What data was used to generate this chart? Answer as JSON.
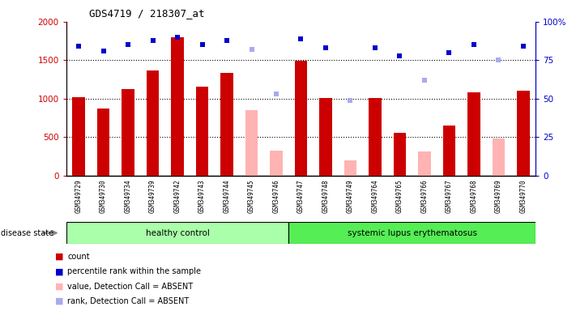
{
  "title": "GDS4719 / 218307_at",
  "samples": [
    "GSM349729",
    "GSM349730",
    "GSM349734",
    "GSM349739",
    "GSM349742",
    "GSM349743",
    "GSM349744",
    "GSM349745",
    "GSM349746",
    "GSM349747",
    "GSM349748",
    "GSM349749",
    "GSM349764",
    "GSM349765",
    "GSM349766",
    "GSM349767",
    "GSM349768",
    "GSM349769",
    "GSM349770"
  ],
  "count_values": [
    1020,
    870,
    1130,
    1370,
    1800,
    1160,
    1340,
    null,
    null,
    1490,
    1010,
    null,
    1010,
    560,
    null,
    650,
    1080,
    null,
    1100
  ],
  "absent_values": [
    null,
    null,
    null,
    null,
    null,
    null,
    null,
    850,
    330,
    null,
    null,
    200,
    null,
    null,
    320,
    null,
    null,
    480,
    null
  ],
  "rank_present": [
    84,
    81,
    85,
    88,
    90,
    85,
    88,
    null,
    null,
    89,
    83,
    null,
    83,
    78,
    null,
    80,
    85,
    null,
    84
  ],
  "rank_absent": [
    null,
    null,
    null,
    null,
    null,
    null,
    null,
    82,
    53,
    null,
    null,
    49,
    null,
    null,
    62,
    null,
    null,
    75,
    null
  ],
  "n_healthy": 9,
  "n_total": 19,
  "healthy_label": "healthy control",
  "sle_label": "systemic lupus erythematosus",
  "disease_state_label": "disease state",
  "ylim_left": [
    0,
    2000
  ],
  "ylim_right": [
    0,
    100
  ],
  "yticks_left": [
    0,
    500,
    1000,
    1500,
    2000
  ],
  "yticks_right": [
    0,
    25,
    50,
    75,
    100
  ],
  "color_count": "#cc0000",
  "color_absent_val": "#ffb3b3",
  "color_rank_present": "#0000cc",
  "color_rank_absent": "#aaaaee",
  "color_healthy_bg": "#aaffaa",
  "color_sle_bg": "#55ee55",
  "color_plot_bg": "#ffffff",
  "color_xaxis_bg": "#cccccc",
  "grid_levels": [
    500,
    1000,
    1500
  ],
  "legend_items": [
    {
      "color": "#cc0000",
      "label": "count"
    },
    {
      "color": "#0000cc",
      "label": "percentile rank within the sample"
    },
    {
      "color": "#ffb3b3",
      "label": "value, Detection Call = ABSENT"
    },
    {
      "color": "#aaaaee",
      "label": "rank, Detection Call = ABSENT"
    }
  ]
}
